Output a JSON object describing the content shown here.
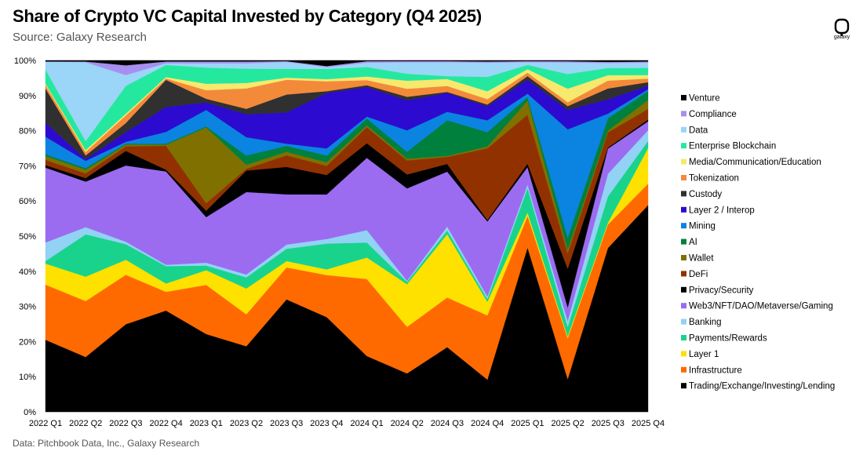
{
  "title": "Share of Crypto VC Capital Invested by Category (Q4 2025)",
  "subtitle": "Source: Galaxy Research",
  "footer": "Data: Pitchbook Data, Inc., Galaxy Research",
  "logo": {
    "icon": "galaxy-logo-icon",
    "word": "galaxy"
  },
  "chart_data": {
    "type": "area",
    "stacked": true,
    "normalized": true,
    "ylim": [
      0,
      100
    ],
    "ytick_labels": [
      "0%",
      "10%",
      "20%",
      "30%",
      "40%",
      "50%",
      "60%",
      "70%",
      "80%",
      "90%",
      "100%"
    ],
    "legend_position": "right",
    "categories": [
      "2022 Q1",
      "2022 Q2",
      "2022 Q3",
      "2022 Q4",
      "2023 Q1",
      "2023 Q2",
      "2023 Q3",
      "2023 Q4",
      "2024 Q1",
      "2024 Q2",
      "2024 Q3",
      "2024 Q4",
      "2025 Q1",
      "2025 Q2",
      "2025 Q3",
      "2025 Q4"
    ],
    "series": [
      {
        "name": "Trading/Exchange/Investing/Lending",
        "color": "#000000",
        "values": [
          20.5,
          15.3,
          25.2,
          29.2,
          21.7,
          18.3,
          32.0,
          26.8,
          15.3,
          11.0,
          18.5,
          9.0,
          47.0,
          8.5,
          45.5,
          58.0
        ]
      },
      {
        "name": "Infrastructure",
        "color": "#ff6a00",
        "values": [
          15.7,
          15.6,
          14.2,
          5.4,
          13.7,
          8.9,
          9.1,
          11.9,
          21.1,
          13.3,
          14.2,
          17.9,
          9.0,
          10.5,
          6.5,
          6.0
        ]
      },
      {
        "name": "Layer 1",
        "color": "#ffe100",
        "values": [
          6.0,
          6.8,
          4.3,
          2.4,
          4.1,
          7.2,
          1.8,
          1.6,
          5.9,
          12.2,
          18.1,
          3.8,
          1.0,
          0.5,
          0.5,
          10.0
        ]
      },
      {
        "name": "Payments/Rewards",
        "color": "#19d38c",
        "values": [
          0.7,
          11.8,
          4.5,
          5.0,
          1.3,
          3.1,
          3.5,
          7.3,
          4.1,
          0.7,
          1.1,
          0.8,
          7.0,
          2.5,
          7.3,
          2.0
        ]
      },
      {
        "name": "Banking",
        "color": "#92d2f5",
        "values": [
          5.3,
          2.0,
          0.7,
          0.4,
          0.8,
          0.8,
          1.2,
          1.3,
          3.4,
          0.3,
          1.1,
          0.7,
          1.0,
          1.5,
          6.3,
          3.0
        ]
      },
      {
        "name": "Web3/NFT/DAO/Metaverse/Gaming",
        "color": "#9b6cf0",
        "values": [
          21.3,
          12.7,
          21.9,
          26.9,
          12.7,
          23.0,
          14.3,
          12.6,
          19.8,
          26.4,
          15.7,
          20.9,
          5.0,
          3.5,
          7.0,
          2.5
        ]
      },
      {
        "name": "Privacy/Security",
        "color": "#000000",
        "values": [
          0.7,
          1.0,
          4.2,
          0.5,
          1.8,
          6.0,
          7.8,
          5.5,
          4.0,
          4.0,
          2.2,
          0.4,
          1.0,
          10.0,
          0.3,
          0.5
        ]
      },
      {
        "name": "DeFi",
        "color": "#923100",
        "values": [
          1.5,
          1.3,
          1.3,
          6.9,
          2.1,
          0.5,
          3.3,
          2.6,
          4.4,
          4.0,
          2.0,
          20.0,
          14.0,
          4.0,
          4.2,
          3.0
        ]
      },
      {
        "name": "Wallet",
        "color": "#807000",
        "values": [
          1.1,
          1.0,
          0.5,
          0.3,
          21.1,
          1.1,
          1.0,
          1.0,
          0.5,
          0.5,
          0.3,
          0.5,
          4.0,
          1.0,
          0.5,
          2.5
        ]
      },
      {
        "name": "AI",
        "color": "#00803d",
        "values": [
          0.5,
          0.5,
          0.3,
          0.3,
          0.3,
          2.6,
          1.7,
          1.9,
          1.9,
          2.0,
          10.2,
          4.0,
          1.0,
          3.0,
          3.4,
          2.5
        ]
      },
      {
        "name": "Mining",
        "color": "#0a84e0",
        "values": [
          5.0,
          2.0,
          0.5,
          3.4,
          4.6,
          5.1,
          0.6,
          2.0,
          0.5,
          6.1,
          2.4,
          3.3,
          1.0,
          28.0,
          1.3,
          0.5
        ]
      },
      {
        "name": "Layer 2 / Interop",
        "color": "#2c0ad0",
        "values": [
          4.0,
          0.5,
          2.8,
          7.2,
          2.1,
          6.4,
          8.9,
          15.7,
          8.1,
          8.6,
          5.4,
          3.9,
          4.0,
          5.0,
          4.0,
          1.0
        ]
      },
      {
        "name": "Custody",
        "color": "#303030",
        "values": [
          9.7,
          1.0,
          2.6,
          7.8,
          1.0,
          1.5,
          5.1,
          0.5,
          0.5,
          1.0,
          0.3,
          0.5,
          1.0,
          1.0,
          3.0,
          1.0
        ]
      },
      {
        "name": "Tokenization",
        "color": "#f38a3a",
        "values": [
          1.0,
          1.0,
          2.2,
          0.4,
          2.4,
          5.7,
          4.2,
          2.8,
          1.4,
          2.3,
          1.7,
          1.5,
          1.0,
          1.0,
          2.2,
          1.0
        ]
      },
      {
        "name": "Media/Communication/Education",
        "color": "#f7e86e",
        "values": [
          0.4,
          0.5,
          0.5,
          0.4,
          1.8,
          1.5,
          0.6,
          0.6,
          1.0,
          2.3,
          2.0,
          2.2,
          1.0,
          3.5,
          1.5,
          1.0
        ]
      },
      {
        "name": "Enterprise Blockchain",
        "color": "#25e89f",
        "values": [
          4.0,
          2.5,
          8.0,
          3.5,
          4.5,
          4.0,
          2.5,
          2.9,
          2.6,
          2.0,
          0.8,
          4.0,
          1.2,
          3.8,
          2.0,
          2.0
        ]
      },
      {
        "name": "Data",
        "color": "#9bd5f7",
        "values": [
          2.3,
          22.0,
          3.1,
          0.5,
          1.2,
          1.5,
          2.0,
          0.5,
          1.2,
          3.3,
          4.0,
          4.0,
          0.8,
          3.0,
          1.4,
          1.5
        ]
      },
      {
        "name": "Compliance",
        "color": "#a78ff0",
        "values": [
          0.0,
          0.2,
          2.8,
          0.5,
          0.5,
          0.5,
          0.2,
          0.3,
          0.4,
          0.3,
          0.3,
          0.3,
          0.3,
          0.3,
          0.3,
          0.3
        ]
      },
      {
        "name": "Venture",
        "color": "#000000",
        "values": [
          0.3,
          0.3,
          1.4,
          0.3,
          0.3,
          0.3,
          0.2,
          1.6,
          0.2,
          0.2,
          0.2,
          0.3,
          0.2,
          0.2,
          0.4,
          0.3
        ]
      }
    ]
  }
}
